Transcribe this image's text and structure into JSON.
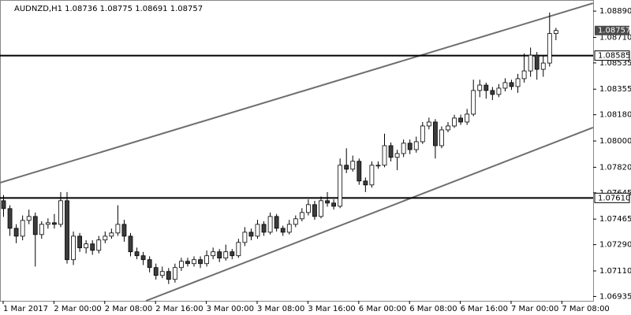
{
  "chart_data": {
    "type": "candlestick",
    "title": "AUDNZD,H1  1.08736 1.08775 1.08691 1.08757",
    "categories": [
      "1 Mar 2017",
      null,
      null,
      null,
      null,
      null,
      null,
      null,
      "2 Mar 00:00",
      null,
      null,
      null,
      null,
      null,
      null,
      null,
      "2 Mar 08:00",
      null,
      null,
      null,
      null,
      null,
      null,
      null,
      "2 Mar 16:00",
      null,
      null,
      null,
      null,
      null,
      null,
      null,
      "3 Mar 00:00",
      null,
      null,
      null,
      null,
      null,
      null,
      null,
      "3 Mar 08:00",
      null,
      null,
      null,
      null,
      null,
      null,
      null,
      "3 Mar 16:00",
      null,
      null,
      null,
      null,
      null,
      null,
      null,
      "6 Mar 00:00",
      null,
      null,
      null,
      null,
      null,
      null,
      null,
      "6 Mar 08:00",
      null,
      null,
      null,
      null,
      null,
      null,
      null,
      "6 Mar 16:00",
      null,
      null,
      null,
      null,
      null,
      null,
      null,
      "7 Mar 00:00",
      null,
      null,
      null,
      null,
      null,
      null,
      null,
      "7 Mar 08:00"
    ],
    "ohlc": [
      [
        1.07591,
        1.0763,
        1.0748,
        1.07537
      ],
      [
        1.07537,
        1.0756,
        1.0735,
        1.07402
      ],
      [
        1.07402,
        1.0743,
        1.073,
        1.07348
      ],
      [
        1.07348,
        1.0749,
        1.0732,
        1.07456
      ],
      [
        1.07456,
        1.0753,
        1.0743,
        1.07483
      ],
      [
        1.07483,
        1.0751,
        1.0714,
        1.07359
      ],
      [
        1.07359,
        1.0745,
        1.0733,
        1.07429
      ],
      [
        1.07429,
        1.0747,
        1.074,
        1.0744
      ],
      [
        1.0744,
        1.075,
        1.074,
        1.07429
      ],
      [
        1.07429,
        1.0765,
        1.0741,
        1.07591
      ],
      [
        1.07591,
        1.0765,
        1.0716,
        1.07187
      ],
      [
        1.07187,
        1.0738,
        1.0715,
        1.07348
      ],
      [
        1.07348,
        1.0737,
        1.0724,
        1.07268
      ],
      [
        1.07268,
        1.0732,
        1.0723,
        1.07295
      ],
      [
        1.07295,
        1.0732,
        1.0722,
        1.07251
      ],
      [
        1.07251,
        1.0735,
        1.0723,
        1.07322
      ],
      [
        1.07322,
        1.0738,
        1.073,
        1.07348
      ],
      [
        1.07348,
        1.074,
        1.0733,
        1.0737
      ],
      [
        1.0737,
        1.0756,
        1.0735,
        1.07429
      ],
      [
        1.07429,
        1.0746,
        1.0731,
        1.07348
      ],
      [
        1.07348,
        1.0737,
        1.0721,
        1.07241
      ],
      [
        1.07241,
        1.0727,
        1.0719,
        1.07214
      ],
      [
        1.07214,
        1.0724,
        1.0715,
        1.07187
      ],
      [
        1.07187,
        1.0721,
        1.071,
        1.07133
      ],
      [
        1.07133,
        1.0716,
        1.0705,
        1.07079
      ],
      [
        1.07079,
        1.0714,
        1.0706,
        1.07106
      ],
      [
        1.07106,
        1.0713,
        1.0702,
        1.07052
      ],
      [
        1.07052,
        1.0716,
        1.0703,
        1.07133
      ],
      [
        1.07133,
        1.072,
        1.0711,
        1.07176
      ],
      [
        1.07176,
        1.072,
        1.0714,
        1.0716
      ],
      [
        1.0716,
        1.0721,
        1.0714,
        1.07187
      ],
      [
        1.07187,
        1.0721,
        1.0713,
        1.0716
      ],
      [
        1.0716,
        1.0725,
        1.0714,
        1.07214
      ],
      [
        1.07214,
        1.0727,
        1.0719,
        1.07241
      ],
      [
        1.07241,
        1.0726,
        1.0717,
        1.07198
      ],
      [
        1.07198,
        1.0729,
        1.0718,
        1.07241
      ],
      [
        1.07241,
        1.0726,
        1.0719,
        1.07214
      ],
      [
        1.07214,
        1.0733,
        1.072,
        1.07305
      ],
      [
        1.07305,
        1.0741,
        1.0728,
        1.07375
      ],
      [
        1.07375,
        1.074,
        1.0732,
        1.07348
      ],
      [
        1.07348,
        1.0746,
        1.0733,
        1.07429
      ],
      [
        1.07429,
        1.0745,
        1.0735,
        1.07375
      ],
      [
        1.07375,
        1.0751,
        1.0736,
        1.07483
      ],
      [
        1.07483,
        1.075,
        1.0738,
        1.07402
      ],
      [
        1.07402,
        1.0742,
        1.0735,
        1.07375
      ],
      [
        1.07375,
        1.0746,
        1.0736,
        1.07429
      ],
      [
        1.07429,
        1.0749,
        1.0741,
        1.07467
      ],
      [
        1.07467,
        1.0754,
        1.0745,
        1.0751
      ],
      [
        1.0751,
        1.076,
        1.0749,
        1.07564
      ],
      [
        1.07564,
        1.0759,
        1.0746,
        1.07483
      ],
      [
        1.07483,
        1.0762,
        1.0747,
        1.07591
      ],
      [
        1.07591,
        1.0765,
        1.0755,
        1.07575
      ],
      [
        1.07575,
        1.076,
        1.0753,
        1.07553
      ],
      [
        1.07553,
        1.0788,
        1.0754,
        1.07834
      ],
      [
        1.07834,
        1.0795,
        1.0778,
        1.07807
      ],
      [
        1.07807,
        1.079,
        1.0779,
        1.07861
      ],
      [
        1.07861,
        1.0788,
        1.077,
        1.07726
      ],
      [
        1.07726,
        1.0775,
        1.0765,
        1.07699
      ],
      [
        1.07699,
        1.0786,
        1.0768,
        1.07834
      ],
      [
        1.07834,
        1.0786,
        1.0781,
        1.07834
      ],
      [
        1.07834,
        1.0805,
        1.0782,
        1.07968
      ],
      [
        1.07968,
        1.0799,
        1.0786,
        1.07888
      ],
      [
        1.07888,
        1.0794,
        1.078,
        1.07914
      ],
      [
        1.07914,
        1.0801,
        1.0789,
        1.07985
      ],
      [
        1.07985,
        1.0801,
        1.0791,
        1.07941
      ],
      [
        1.07941,
        1.0803,
        1.0792,
        1.07995
      ],
      [
        1.07995,
        1.0813,
        1.0798,
        1.08103
      ],
      [
        1.08103,
        1.0816,
        1.0808,
        1.0813
      ],
      [
        1.0813,
        1.0815,
        1.0788,
        1.07968
      ],
      [
        1.07968,
        1.081,
        1.0795,
        1.08076
      ],
      [
        1.08076,
        1.0813,
        1.0806,
        1.08103
      ],
      [
        1.08103,
        1.0818,
        1.0809,
        1.08157
      ],
      [
        1.08157,
        1.0818,
        1.0811,
        1.0813
      ],
      [
        1.0813,
        1.0822,
        1.0811,
        1.08184
      ],
      [
        1.08184,
        1.0842,
        1.0817,
        1.08346
      ],
      [
        1.08346,
        1.0842,
        1.083,
        1.08383
      ],
      [
        1.08383,
        1.084,
        1.0829,
        1.08346
      ],
      [
        1.08346,
        1.0837,
        1.0828,
        1.08319
      ],
      [
        1.08319,
        1.0839,
        1.083,
        1.08362
      ],
      [
        1.08362,
        1.0843,
        1.0834,
        1.084
      ],
      [
        1.084,
        1.0842,
        1.0835,
        1.08373
      ],
      [
        1.08373,
        1.0846,
        1.0833,
        1.08427
      ],
      [
        1.08427,
        1.086,
        1.084,
        1.0848
      ],
      [
        1.0848,
        1.0864,
        1.0844,
        1.08588
      ],
      [
        1.08588,
        1.0861,
        1.0842,
        1.08491
      ],
      [
        1.08491,
        1.0859,
        1.0844,
        1.08534
      ],
      [
        1.08534,
        1.0888,
        1.0851,
        1.08736
      ],
      [
        1.08736,
        1.08775,
        1.08691,
        1.08757
      ],
      null
    ],
    "up_color": "#ffffff",
    "down_color": "#3c3c3c",
    "outline_color": "#000000",
    "ylim": [
      1.06905,
      1.08966
    ],
    "yticks": [
      {
        "value": 1.0889,
        "label": "1.08890"
      },
      {
        "value": 1.0871,
        "label": "1.08710"
      },
      {
        "value": 1.08535,
        "label": "1.08535"
      },
      {
        "value": 1.08355,
        "label": "1.08355"
      },
      {
        "value": 1.0818,
        "label": "1.08180"
      },
      {
        "value": 1.08,
        "label": "1.08000"
      },
      {
        "value": 1.0782,
        "label": "1.07820"
      },
      {
        "value": 1.07645,
        "label": "1.07645"
      },
      {
        "value": 1.07465,
        "label": "1.07465"
      },
      {
        "value": 1.0729,
        "label": "1.07290"
      },
      {
        "value": 1.0711,
        "label": "1.07110"
      },
      {
        "value": 1.06935,
        "label": "1.06935"
      }
    ],
    "horizontal_lines": [
      {
        "value": 1.08585,
        "label": "1.08585"
      },
      {
        "value": 1.0761,
        "label": "1.07610"
      }
    ],
    "current_price": {
      "value": 1.08757,
      "label": "1.08757"
    },
    "trendlines": [
      {
        "x": [
          -0.5,
          92.9
        ],
        "y": [
          1.07714,
          1.08944
        ]
      },
      {
        "x": [
          22.5,
          92.9
        ],
        "y": [
          1.06905,
          1.08092
        ]
      }
    ]
  }
}
